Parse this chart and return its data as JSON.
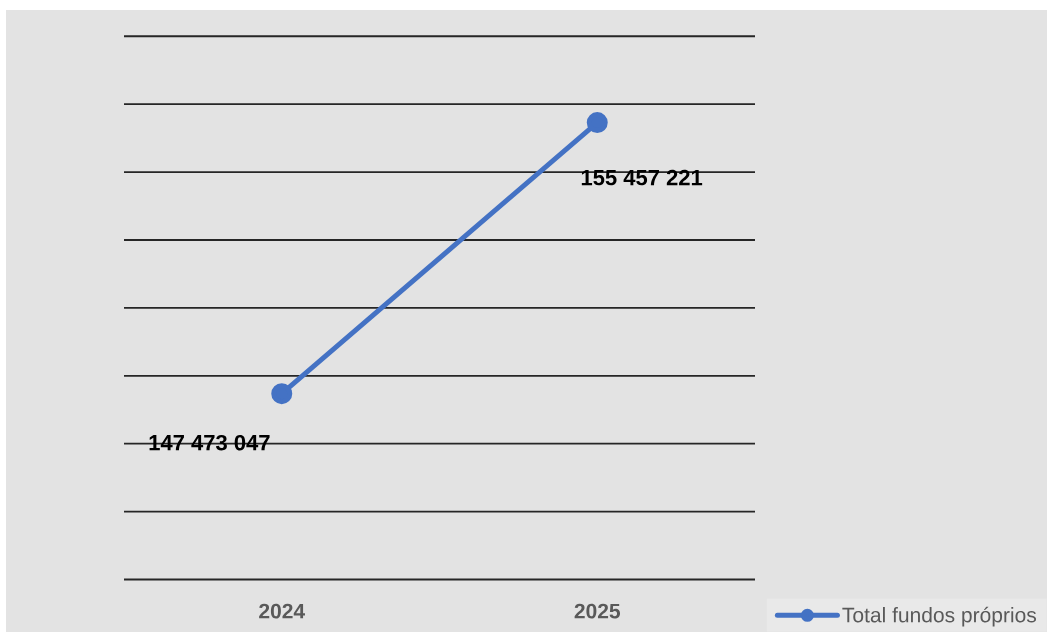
{
  "chart_data": {
    "type": "line",
    "categories": [
      "2024",
      "2025"
    ],
    "series": [
      {
        "name": "Total fundos próprios",
        "color": "#4472c4",
        "values": [
          147473047,
          155457221
        ],
        "value_labels": [
          "147 473 047",
          "155 457 221"
        ]
      }
    ],
    "grid": "y",
    "legend": "bottom right",
    "tick_labels": "x",
    "marker": "circle",
    "line_style": "solid"
  }
}
